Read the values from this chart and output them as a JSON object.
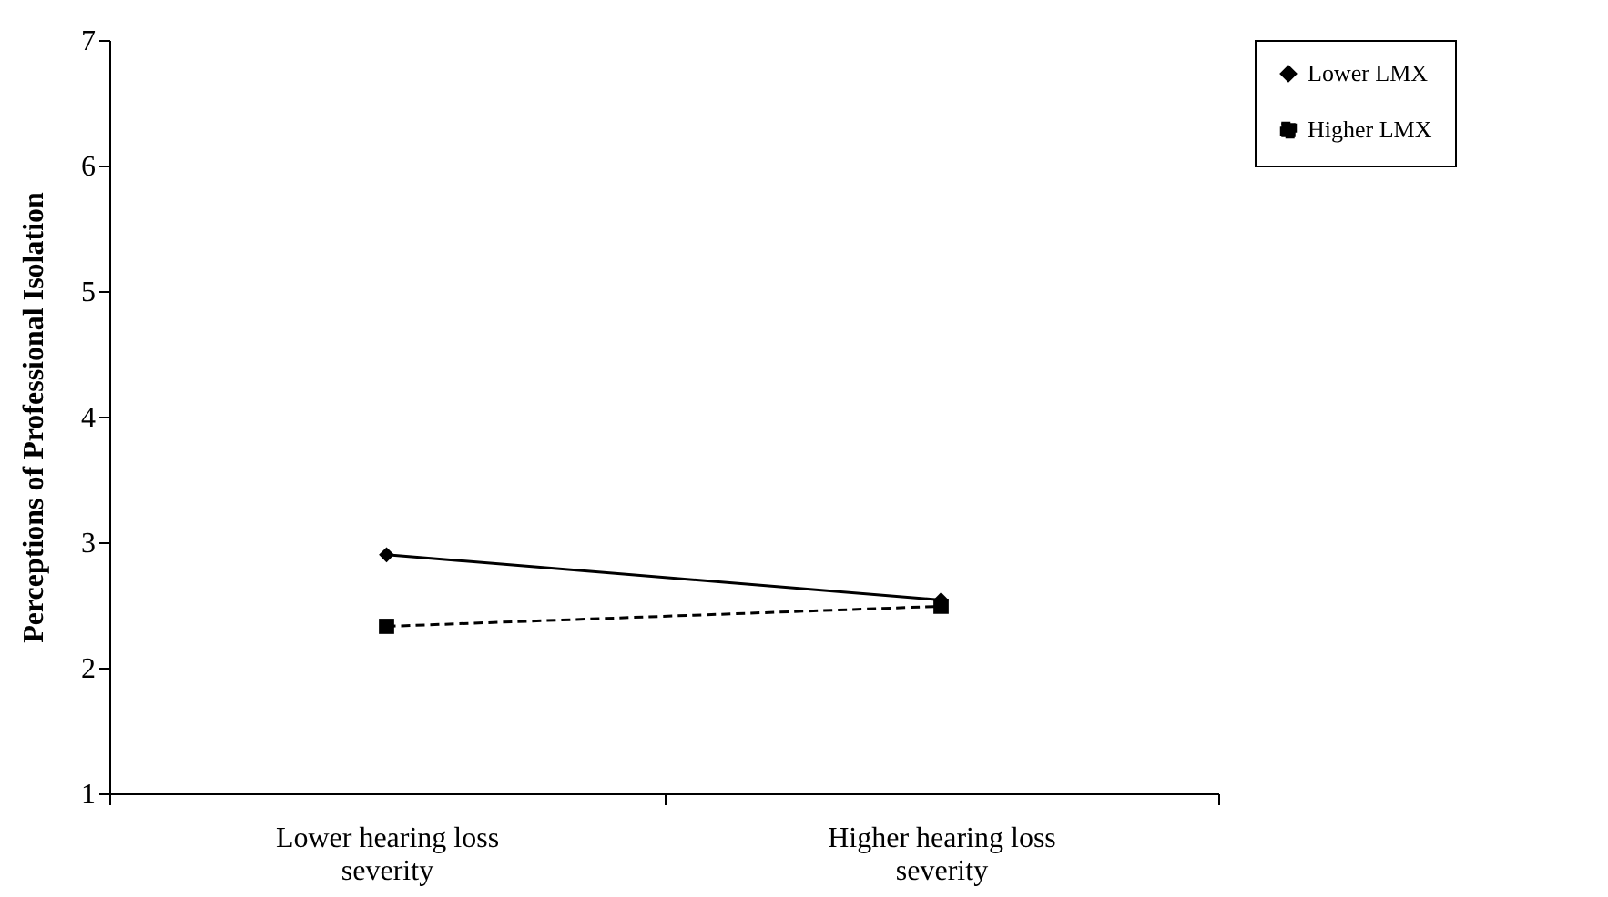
{
  "chart_data": {
    "type": "line",
    "ylabel": "Perceptions of Professional Isolation",
    "categories": [
      "Lower hearing loss severity",
      "Higher hearing loss severity"
    ],
    "series": [
      {
        "name": "Lower LMX",
        "color": "#000000",
        "values": [
          2.9,
          2.54
        ],
        "marker": "diamond",
        "line_style": "solid"
      },
      {
        "name": "Higher LMX",
        "color": "#000000",
        "values": [
          2.33,
          2.49
        ],
        "marker": "square",
        "line_style": "dashed"
      }
    ],
    "ylim": [
      1,
      7
    ],
    "yticks": [
      1,
      2,
      3,
      4,
      5,
      6,
      7
    ],
    "grid": false,
    "legend": "right"
  }
}
